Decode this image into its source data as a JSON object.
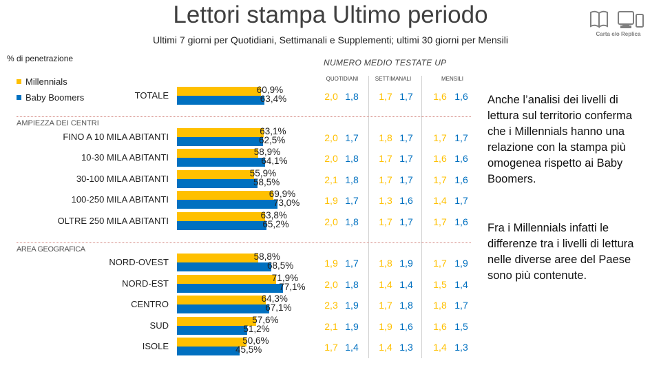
{
  "title": "Lettori stampa Ultimo periodo",
  "subtitle": "Ultimi 7 giorni per Quotidiani, Settimanali e Supplementi; ultimi 30 giorni per Mensili",
  "logo_caption": "Carta e/o Replica",
  "logo_icons": [
    "book-icon",
    "tablet-icon",
    "phone-icon"
  ],
  "penetration_label": "% di penetrazione",
  "colors": {
    "millennials": "#FFC000",
    "babyboomers": "#0070C0",
    "separator": "#D0807A"
  },
  "numero_medio": {
    "title": "NUMERO MEDIO TESTATE UP",
    "columns": [
      "QUOTIDIANI",
      "SETTIMANALI",
      "MENSILI"
    ]
  },
  "sections": [
    "AMPIEZZA DEI CENTRI",
    "AREA GEOGRAFICA"
  ],
  "chart_data": {
    "type": "bar",
    "orientation": "horizontal",
    "unit": "%",
    "xlim": [
      0,
      100
    ],
    "categories": [
      "TOTALE",
      "FINO A 10 MILA ABITANTI",
      "10-30 MILA ABITANTI",
      "30-100 MILA ABITANTI",
      "100-250 MILA ABITANTI",
      "OLTRE 250 MILA ABITANTI",
      "NORD-OVEST",
      "NORD-EST",
      "CENTRO",
      "SUD",
      "ISOLE"
    ],
    "series": [
      {
        "name": "Millennials",
        "values": [
          60.9,
          63.1,
          58.9,
          55.9,
          69.9,
          63.8,
          58.8,
          71.9,
          64.3,
          57.6,
          50.6
        ],
        "labels": [
          "60,9%",
          "63,1%",
          "58,9%",
          "55,9%",
          "69,9%",
          "63,8%",
          "58,8%",
          "71,9%",
          "64,3%",
          "57,6%",
          "50,6%"
        ]
      },
      {
        "name": "Baby Boomers",
        "values": [
          63.4,
          62.5,
          64.1,
          58.5,
          73.0,
          65.2,
          68.5,
          77.1,
          67.1,
          51.2,
          45.5
        ],
        "labels": [
          "63,4%",
          "62,5%",
          "64,1%",
          "58,5%",
          "73,0%",
          "65,2%",
          "68,5%",
          "77,1%",
          "67,1%",
          "51,2%",
          "45,5%"
        ]
      }
    ],
    "legend": "top-left",
    "grid": false
  },
  "numero_medio_values": [
    [
      [
        "2,0",
        "1,8"
      ],
      [
        "1,7",
        "1,7"
      ],
      [
        "1,6",
        "1,6"
      ]
    ],
    [
      [
        "2,0",
        "1,7"
      ],
      [
        "1,8",
        "1,7"
      ],
      [
        "1,7",
        "1,7"
      ]
    ],
    [
      [
        "2,0",
        "1,8"
      ],
      [
        "1,7",
        "1,7"
      ],
      [
        "1,6",
        "1,6"
      ]
    ],
    [
      [
        "2,1",
        "1,8"
      ],
      [
        "1,7",
        "1,7"
      ],
      [
        "1,7",
        "1,6"
      ]
    ],
    [
      [
        "1,9",
        "1,7"
      ],
      [
        "1,3",
        "1,6"
      ],
      [
        "1,4",
        "1,7"
      ]
    ],
    [
      [
        "2,0",
        "1,8"
      ],
      [
        "1,7",
        "1,7"
      ],
      [
        "1,7",
        "1,6"
      ]
    ],
    [
      [
        "1,9",
        "1,7"
      ],
      [
        "1,8",
        "1,9"
      ],
      [
        "1,7",
        "1,9"
      ]
    ],
    [
      [
        "2,0",
        "1,8"
      ],
      [
        "1,4",
        "1,4"
      ],
      [
        "1,5",
        "1,4"
      ]
    ],
    [
      [
        "2,3",
        "1,9"
      ],
      [
        "1,7",
        "1,8"
      ],
      [
        "1,8",
        "1,7"
      ]
    ],
    [
      [
        "2,1",
        "1,9"
      ],
      [
        "1,9",
        "1,6"
      ],
      [
        "1,6",
        "1,5"
      ]
    ],
    [
      [
        "1,7",
        "1,4"
      ],
      [
        "1,4",
        "1,3"
      ],
      [
        "1,4",
        "1,3"
      ]
    ]
  ],
  "commentary": [
    "Anche l’analisi dei livelli di lettura sul territorio conferma che i Millennials hanno una relazione con la stampa più omogenea rispetto ai Baby Boomers.",
    "Fra i Millennials infatti le differenze tra i livelli di lettura nelle diverse aree del Paese sono più contenute."
  ]
}
